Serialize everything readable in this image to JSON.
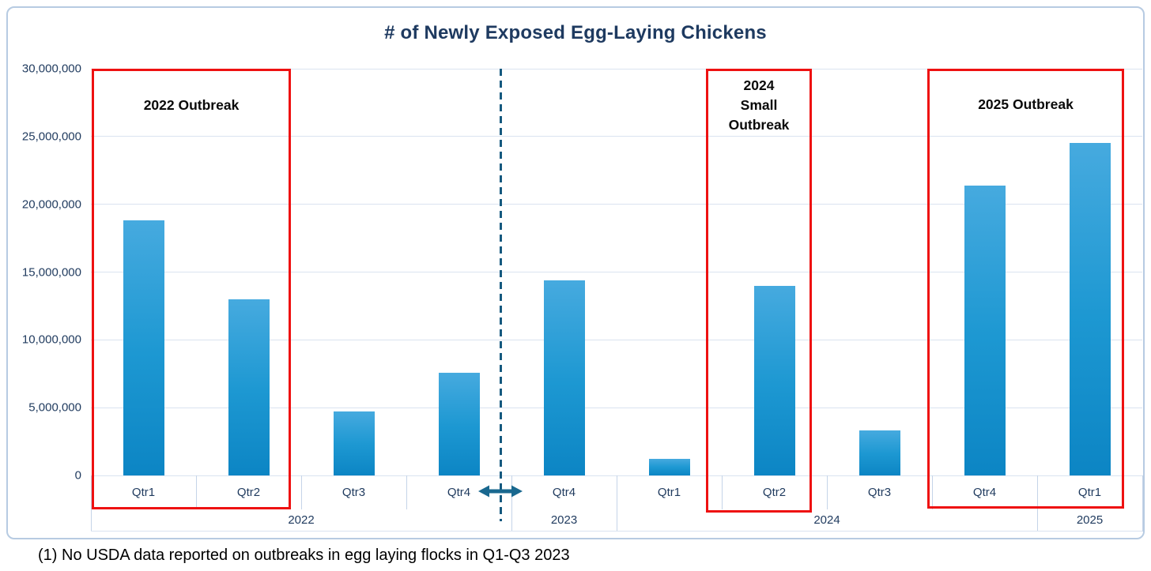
{
  "chart": {
    "title": "# of Newly Exposed Egg-Laying Chickens",
    "footnote": "(1) No USDA data reported on outbreaks in egg laying flocks in Q1-Q3 2023"
  },
  "colors": {
    "title_text": "#1E3A60",
    "axis_text": "#1F3A5E",
    "bar_top": "#46AADF",
    "bar_bottom": "#0C85C4",
    "outbreak_box_red": "#EE1111",
    "annotation_text": "#0A0A0A",
    "gap_dashed_line": "#15597F",
    "gap_arrow": "#19688F",
    "gridline": "#DAE3F0",
    "frame_border": "#B7CBE2"
  },
  "chart_data": {
    "type": "bar",
    "title": "# of Newly Exposed Egg-Laying Chickens",
    "xlabel": "",
    "ylabel": "",
    "ylim": [
      0,
      30000000
    ],
    "ytick_interval": 5000000,
    "ytick_labels": [
      "0",
      "5,000,000",
      "10,000,000",
      "15,000,000",
      "20,000,000",
      "25,000,000",
      "30,000,000"
    ],
    "grid": true,
    "legend": "none",
    "categories": [
      {
        "quarter": "Qtr1",
        "year": "2022",
        "value": 18800000
      },
      {
        "quarter": "Qtr2",
        "year": "2022",
        "value": 13000000
      },
      {
        "quarter": "Qtr3",
        "year": "2022",
        "value": 4700000
      },
      {
        "quarter": "Qtr4",
        "year": "2022",
        "value": 7600000
      },
      {
        "quarter": "Qtr4",
        "year": "2023",
        "value": 14400000
      },
      {
        "quarter": "Qtr1",
        "year": "2024",
        "value": 1200000
      },
      {
        "quarter": "Qtr2",
        "year": "2024",
        "value": 14000000
      },
      {
        "quarter": "Qtr3",
        "year": "2024",
        "value": 3300000
      },
      {
        "quarter": "Qtr4",
        "year": "2024",
        "value": 21400000
      },
      {
        "quarter": "Qtr1",
        "year": "2025",
        "value": 24500000
      }
    ],
    "year_groups": [
      {
        "label": "2022",
        "span": 4
      },
      {
        "label": "2023",
        "span": 1
      },
      {
        "label": "2024",
        "span": 4
      },
      {
        "label": "2025",
        "span": 1
      }
    ],
    "annotations": [
      {
        "label": "2022 Outbreak",
        "start_slot": 0,
        "end_slot": 1
      },
      {
        "label": "2024\nSmall\nOutbreak",
        "start_slot": 6,
        "end_slot": 6
      },
      {
        "label": "2025 Outbreak",
        "start_slot": 8,
        "end_slot": 9
      }
    ],
    "gap_marker_note": "dashed vertical line with double arrow between Qtr4 2022 and Qtr4 2023 (no data Q1-Q3 2023)",
    "footnote": "(1) No USDA data reported on outbreaks in egg laying flocks in Q1-Q3 2023"
  }
}
